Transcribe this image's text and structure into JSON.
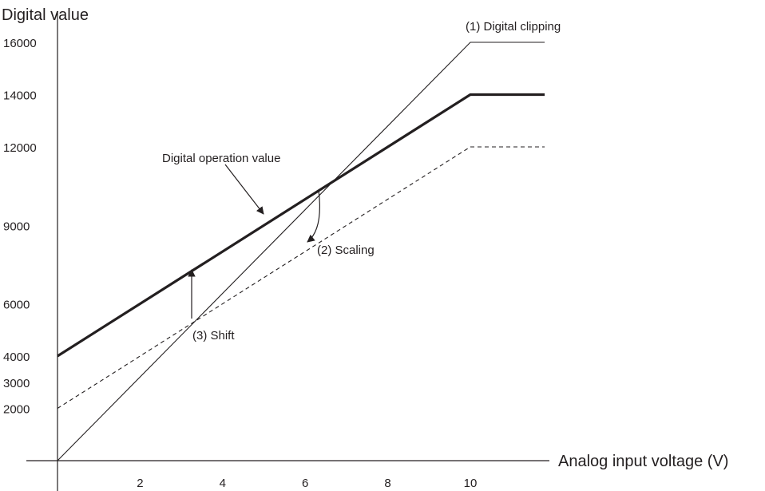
{
  "chart_data": {
    "type": "line",
    "ylabel": "Digital value",
    "xlabel": "Analog input voltage (V)",
    "xlim": [
      0,
      11.8
    ],
    "ylim": [
      0,
      16000
    ],
    "x_ticks": [
      2,
      4,
      6,
      8,
      10
    ],
    "y_ticks": [
      2000,
      3000,
      4000,
      6000,
      9000,
      12000,
      14000,
      16000
    ],
    "series": [
      {
        "style": "thin",
        "points": [
          [
            0,
            0
          ],
          [
            10,
            16000
          ],
          [
            11.8,
            16000
          ]
        ]
      },
      {
        "style": "bold",
        "points": [
          [
            0,
            4000
          ],
          [
            10,
            14000
          ],
          [
            11.8,
            14000
          ]
        ]
      },
      {
        "style": "dashed",
        "points": [
          [
            0,
            2000
          ],
          [
            10,
            12000
          ],
          [
            11.8,
            12000
          ]
        ]
      }
    ],
    "annotations": [
      {
        "text": "(1) Digital clipping"
      },
      {
        "text": "Digital operation value"
      },
      {
        "text": "(2) Scaling"
      },
      {
        "text": "(3) Shift"
      }
    ],
    "colors": {
      "line": "#231f20",
      "background": "#ffffff"
    }
  }
}
